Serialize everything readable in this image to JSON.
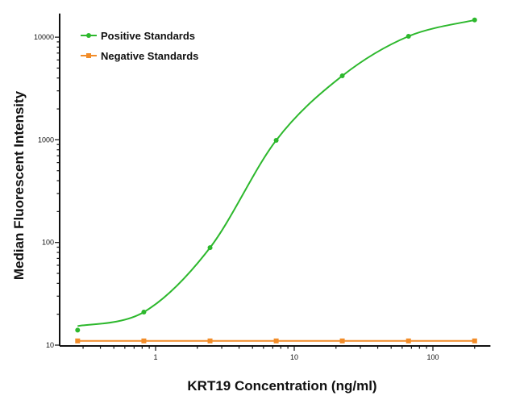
{
  "chart_data": {
    "type": "line",
    "title": "",
    "xlabel": "KRT19 Concentration (ng/ml)",
    "ylabel": "Median Fluorescent Intensity",
    "x_scale": "log",
    "y_scale": "log",
    "xlim": [
      0.22,
      260
    ],
    "ylim": [
      9.5,
      17000
    ],
    "x_ticks": [
      {
        "value": 1,
        "label": "1"
      },
      {
        "value": 10,
        "label": "10"
      },
      {
        "value": 100,
        "label": "100"
      }
    ],
    "y_ticks": [
      {
        "value": 10,
        "label": "10"
      },
      {
        "value": 100,
        "label": "100"
      },
      {
        "value": 1000,
        "label": "1000"
      },
      {
        "value": 10000,
        "label": "10000"
      }
    ],
    "grid": false,
    "legend_position": "top-left",
    "series": [
      {
        "name": "Positive Standards",
        "color": "#2db82d",
        "marker": "circle",
        "fit_curve": true,
        "x": [
          0.274,
          0.823,
          2.47,
          7.41,
          22.2,
          66.7,
          200
        ],
        "y": [
          14,
          21,
          89,
          990,
          4200,
          10200,
          14700
        ]
      },
      {
        "name": "Negative Standards",
        "color": "#f28c28",
        "marker": "square",
        "fit_curve": false,
        "x": [
          0.274,
          0.823,
          2.47,
          7.41,
          22.2,
          66.7,
          200
        ],
        "y": [
          11,
          11,
          11,
          11,
          11,
          11,
          11
        ]
      }
    ]
  }
}
